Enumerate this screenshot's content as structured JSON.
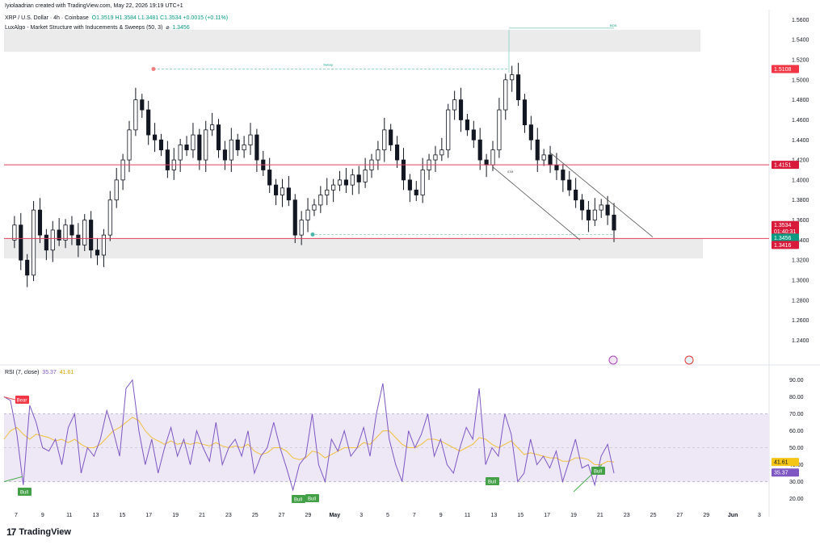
{
  "header": {
    "creator_line": "Iyiolaadrian created with TradingView.com, May 22, 2026 19:19 UTC+1",
    "symbol_line": "XRP / U.S. Dollar · 4h · Coinbase",
    "ohlc": "O1.3519  H1.3584  L1.3481  C1.3534  +0.0015 (+0.11%)",
    "indicator_line": "LuxAlgo - Market Structure with Inducements & Sweeps (50, 3)",
    "indicator_symbol": "⌀",
    "indicator_value": "1.3456",
    "rsi_label": "RSI (7, close)",
    "rsi_value": "35.37",
    "rsi_ma_value": "41.61"
  },
  "branding": {
    "logo": "17",
    "name": "TradingView"
  },
  "colors": {
    "up": "#089981",
    "down": "#f23645",
    "candle": "#131722",
    "rsi": "#7e57c2",
    "rsi_ma": "#f0c040",
    "resistance": "#e04060",
    "channel": "#555555",
    "band": "#ede7f6"
  },
  "chart_data": [
    {
      "type": "candlestick",
      "title": "XRP / U.S. Dollar · 4h · Coinbase",
      "ylim": [
        1.225,
        1.57
      ],
      "price_ticks": [
        "1.5600",
        "1.5400",
        "1.5200",
        "1.5000",
        "1.4800",
        "1.4600",
        "1.4400",
        "1.4200",
        "1.4000",
        "1.3800",
        "1.3600",
        "1.3400",
        "1.3200",
        "1.3000",
        "1.2800",
        "1.2600",
        "1.2400"
      ],
      "x_ticks": [
        "7",
        "9",
        "11",
        "13",
        "15",
        "17",
        "19",
        "21",
        "23",
        "25",
        "27",
        "29",
        "May",
        "3",
        "5",
        "7",
        "9",
        "11",
        "13",
        "15",
        "17",
        "19",
        "21",
        "23",
        "25",
        "27",
        "29",
        "Jun",
        "3"
      ],
      "close_path": [
        1.34,
        1.355,
        1.32,
        1.305,
        1.37,
        1.345,
        1.33,
        1.35,
        1.34,
        1.355,
        1.345,
        1.335,
        1.36,
        1.33,
        1.325,
        1.345,
        1.38,
        1.4,
        1.42,
        1.45,
        1.48,
        1.47,
        1.445,
        1.44,
        1.43,
        1.41,
        1.42,
        1.435,
        1.43,
        1.445,
        1.42,
        1.45,
        1.455,
        1.43,
        1.42,
        1.44,
        1.43,
        1.435,
        1.445,
        1.42,
        1.41,
        1.395,
        1.385,
        1.392,
        1.38,
        1.345,
        1.36,
        1.37,
        1.375,
        1.385,
        1.39,
        1.395,
        1.4,
        1.395,
        1.405,
        1.398,
        1.41,
        1.42,
        1.43,
        1.45,
        1.435,
        1.42,
        1.4,
        1.39,
        1.385,
        1.41,
        1.42,
        1.425,
        1.43,
        1.47,
        1.48,
        1.46,
        1.45,
        1.44,
        1.42,
        1.415,
        1.43,
        1.47,
        1.5,
        1.505,
        1.48,
        1.455,
        1.44,
        1.42,
        1.425,
        1.415,
        1.41,
        1.4,
        1.39,
        1.38,
        1.37,
        1.36,
        1.37,
        1.375,
        1.365,
        1.35
      ],
      "annotations": {
        "resistance_price": 1.4151,
        "support_price": 1.3416,
        "supply_zone": [
          1.528,
          1.55
        ],
        "demand_zone": [
          1.3216,
          1.3416
        ],
        "sweep_high_price": 1.5108,
        "sweep_low_price": 1.3456,
        "bos_label": "BOS",
        "idm_label": "IDM",
        "sweep_label": "Sweep"
      },
      "price_labels": [
        {
          "value": "1.5108",
          "color": "#f23645"
        },
        {
          "value": "1.4151",
          "color": "#d81b3a"
        },
        {
          "value": "1.3534",
          "color": "#d81b3a"
        },
        {
          "value": "01:40:31",
          "color": "#d81b3a"
        },
        {
          "value": "1.3456",
          "color": "#089981"
        },
        {
          "value": "1.3416",
          "color": "#d81b3a"
        }
      ]
    },
    {
      "type": "line",
      "title": "RSI (7, close)",
      "ylim": [
        15,
        96
      ],
      "y_ticks": [
        "90.00",
        "80.00",
        "70.00",
        "60.00",
        "50.00",
        "40.00",
        "30.00",
        "20.00"
      ],
      "band": [
        30,
        70
      ],
      "series": [
        {
          "name": "RSI",
          "values": [
            80,
            78,
            58,
            28,
            75,
            65,
            50,
            48,
            55,
            40,
            62,
            70,
            35,
            50,
            45,
            55,
            72,
            60,
            45,
            85,
            90,
            60,
            40,
            55,
            35,
            50,
            62,
            45,
            55,
            40,
            60,
            50,
            42,
            65,
            40,
            50,
            55,
            45,
            60,
            35,
            45,
            50,
            65,
            50,
            38,
            25,
            40,
            45,
            70,
            40,
            30,
            55,
            48,
            60,
            45,
            50,
            62,
            45,
            70,
            88,
            55,
            40,
            30,
            60,
            50,
            58,
            70,
            45,
            55,
            40,
            35,
            50,
            62,
            55,
            85,
            40,
            50,
            45,
            70,
            58,
            30,
            35,
            55,
            40,
            45,
            38,
            48,
            30,
            42,
            55,
            38,
            40,
            28,
            45,
            52,
            35
          ]
        },
        {
          "name": "MA",
          "values": [
            55,
            60,
            62,
            58,
            55,
            58,
            57,
            56,
            54,
            55,
            53,
            55,
            52,
            50,
            50,
            52,
            56,
            60,
            62,
            65,
            68,
            66,
            60,
            56,
            54,
            52,
            54,
            52,
            53,
            52,
            53,
            52,
            51,
            53,
            51,
            50,
            51,
            50,
            52,
            48,
            46,
            47,
            50,
            50,
            48,
            44,
            43,
            44,
            48,
            47,
            44,
            46,
            48,
            50,
            50,
            50,
            53,
            52,
            56,
            60,
            60,
            56,
            52,
            50,
            50,
            52,
            55,
            55,
            54,
            52,
            50,
            48,
            50,
            52,
            56,
            55,
            52,
            50,
            52,
            54,
            50,
            46,
            47,
            46,
            45,
            44,
            44,
            42,
            42,
            44,
            44,
            43,
            40,
            40,
            42,
            41.61
          ]
        }
      ],
      "signals": [
        {
          "label": "Bear",
          "kind": "bear"
        },
        {
          "label": "Bull",
          "kind": "bull"
        },
        {
          "label": "Bull",
          "kind": "bull"
        },
        {
          "label": "Bull",
          "kind": "bull"
        },
        {
          "label": "Bull",
          "kind": "bull"
        },
        {
          "label": "Bull",
          "kind": "bull"
        }
      ],
      "value_labels": [
        {
          "value": "41.61",
          "color": "#f5c518"
        },
        {
          "value": "35.37",
          "color": "#7e57c2"
        }
      ]
    }
  ]
}
